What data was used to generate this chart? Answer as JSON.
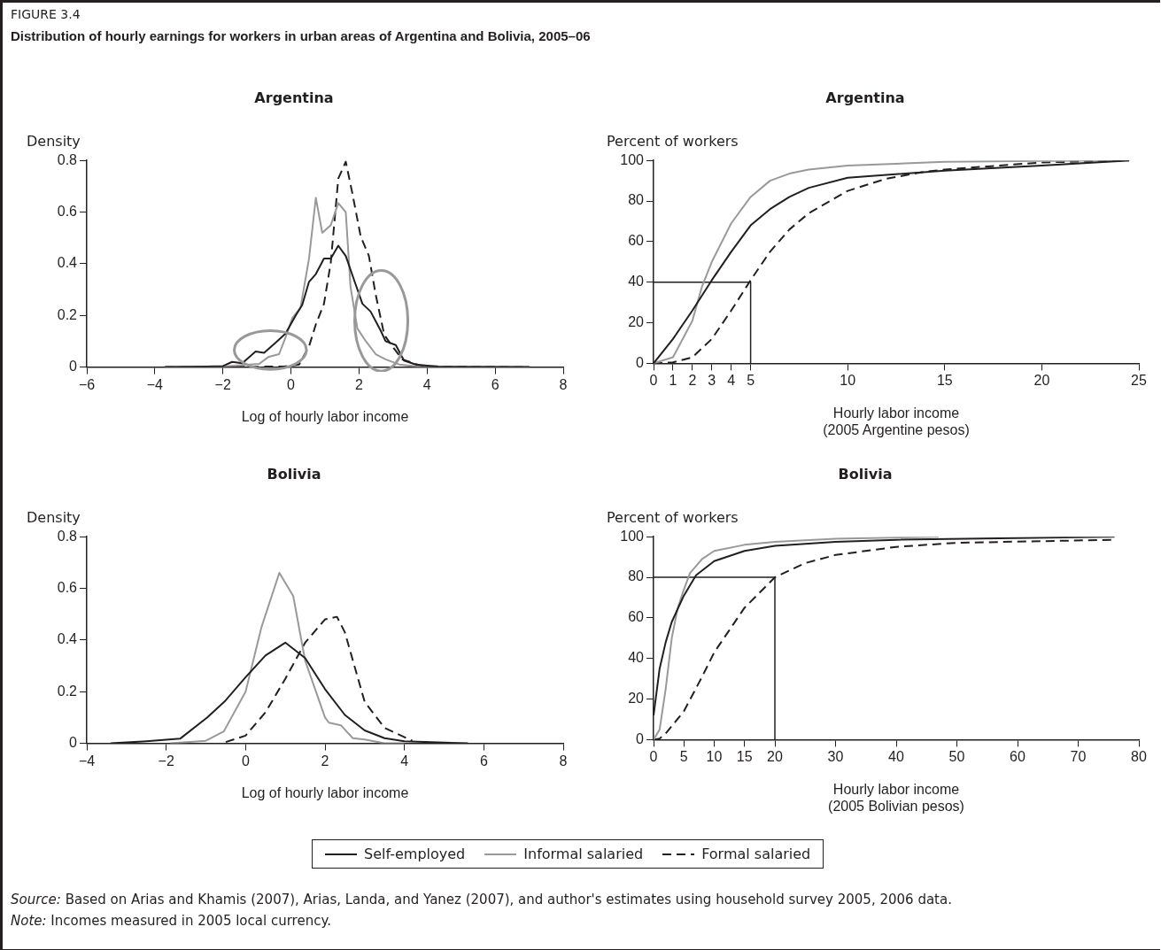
{
  "chart_data": [
    {
      "type": "line",
      "title": "Argentina",
      "ylabel": "Density",
      "xlabel": "Log of hourly labor income",
      "annotations": [
        "FIGURE 3.4",
        "Distribution of hourly earnings for workers in urban areas of Argentina and Bolivia, 2005–06"
      ],
      "xlim": [
        -6,
        8
      ],
      "xticks": [
        -6,
        -4,
        -2,
        0,
        2,
        4,
        6,
        8
      ],
      "ylim": [
        0,
        0.8
      ],
      "yticks": [
        0,
        0.2,
        0.4,
        0.6,
        0.8
      ],
      "grid": false,
      "marker": "none",
      "series": [
        {
          "color": "#231f20",
          "line_style": "solid",
          "x": [
            -3.7,
            -2.5,
            -2,
            -1.73,
            -1.43,
            -1.04,
            -0.79,
            -0.45,
            -0.16,
            0.14,
            0.33,
            0.53,
            0.73,
            0.97,
            1.17,
            1.39,
            1.61,
            1.9,
            2.1,
            2.34,
            2.64,
            2.78,
            3.08,
            3.32,
            3.67,
            4.35,
            7
          ],
          "values": [
            0,
            0.002,
            0.004,
            0.02,
            0.015,
            0.06,
            0.055,
            0.095,
            0.13,
            0.2,
            0.24,
            0.33,
            0.36,
            0.42,
            0.42,
            0.47,
            0.43,
            0.32,
            0.245,
            0.215,
            0.14,
            0.1,
            0.085,
            0.025,
            0.01,
            0.001,
            0
          ]
        },
        {
          "color": "#999999",
          "line_style": "solid",
          "x": [
            -3.7,
            -2,
            -0.94,
            -0.65,
            -0.35,
            -0.16,
            0.04,
            0.28,
            0.53,
            0.73,
            0.92,
            1.17,
            1.39,
            1.61,
            1.75,
            1.95,
            2.2,
            2.49,
            2.78,
            3.18,
            3.86,
            7
          ],
          "values": [
            0,
            0.002,
            0.012,
            0.04,
            0.05,
            0.115,
            0.19,
            0.23,
            0.42,
            0.655,
            0.52,
            0.55,
            0.635,
            0.6,
            0.31,
            0.15,
            0.1,
            0.05,
            0.03,
            0.01,
            0,
            0
          ]
        },
        {
          "color": "#231f20",
          "line_style": "dashed",
          "x": [
            -3.7,
            -0.2,
            0.24,
            0.53,
            0.73,
            0.97,
            1.17,
            1.39,
            1.61,
            1.8,
            2.05,
            2.29,
            2.49,
            2.74,
            2.98,
            3.27,
            3.86,
            7
          ],
          "values": [
            0,
            0.002,
            0.01,
            0.08,
            0.165,
            0.245,
            0.405,
            0.73,
            0.795,
            0.675,
            0.505,
            0.43,
            0.28,
            0.125,
            0.08,
            0.03,
            0.003,
            0
          ]
        }
      ]
    },
    {
      "type": "line",
      "title": "Argentina",
      "ylabel": "Percent of workers",
      "xlabel": "Hourly labor income\n(2005 Argentine pesos)",
      "xlim": [
        0,
        25
      ],
      "xticks": [
        0,
        1,
        2,
        3,
        4,
        5,
        10,
        15,
        20,
        25
      ],
      "ylim": [
        0,
        100
      ],
      "yticks": [
        0,
        20,
        40,
        60,
        80,
        100
      ],
      "grid": false,
      "marker": "none",
      "series": [
        {
          "color": "#231f20",
          "line_style": "solid",
          "x": [
            0,
            1,
            2,
            3,
            4,
            5,
            6,
            7,
            8,
            10,
            15,
            20,
            24.5
          ],
          "values": [
            0,
            12,
            26,
            41,
            55,
            68,
            76,
            82,
            86.5,
            91.5,
            95,
            97.5,
            100
          ]
        },
        {
          "color": "#999999",
          "line_style": "solid",
          "x": [
            0,
            1,
            2,
            2.5,
            3,
            4,
            5,
            6,
            7,
            8,
            10,
            15,
            20,
            24.5
          ],
          "values": [
            0,
            3,
            21,
            38,
            50,
            69,
            82,
            90,
            93.5,
            95.5,
            97.5,
            99.3,
            99.8,
            100
          ]
        },
        {
          "color": "#231f20",
          "line_style": "dashed",
          "x": [
            0,
            1,
            2,
            3,
            4,
            5,
            6,
            7,
            8,
            10,
            12,
            14,
            15,
            20,
            24.5
          ],
          "values": [
            0,
            0.5,
            3,
            12,
            26,
            41,
            55,
            66,
            74,
            85,
            91,
            94.5,
            95.5,
            99,
            100
          ]
        },
        {
          "type": "line",
          "color": "#231f20",
          "line_style": "solid",
          "x": [
            0,
            5,
            5
          ],
          "values": [
            40,
            40,
            0
          ]
        }
      ]
    },
    {
      "type": "line",
      "title": "Bolivia",
      "ylabel": "Density",
      "xlabel": "Log of hourly labor income",
      "xlim": [
        -4,
        8
      ],
      "xticks": [
        -4,
        -2,
        0,
        2,
        4,
        6,
        8
      ],
      "ylim": [
        0,
        0.8
      ],
      "yticks": [
        0,
        0.2,
        0.4,
        0.6,
        0.8
      ],
      "grid": false,
      "marker": "none",
      "series": [
        {
          "color": "#231f20",
          "line_style": "solid",
          "x": [
            -3.4,
            -2.5,
            -1.65,
            -0.97,
            -0.51,
            0,
            0.5,
            1,
            1.5,
            2,
            2.5,
            3,
            3.5,
            4,
            5.6
          ],
          "values": [
            0,
            0.008,
            0.018,
            0.1,
            0.165,
            0.256,
            0.34,
            0.39,
            0.33,
            0.21,
            0.11,
            0.05,
            0.02,
            0.008,
            0
          ]
        },
        {
          "color": "#999999",
          "line_style": "solid",
          "x": [
            -1.9,
            -1,
            -0.55,
            0,
            0.4,
            0.85,
            1.2,
            1.5,
            2,
            2.1,
            2.4,
            2.7,
            3,
            3.5,
            4
          ],
          "values": [
            0,
            0.01,
            0.046,
            0.2,
            0.45,
            0.66,
            0.57,
            0.32,
            0.1,
            0.08,
            0.07,
            0.02,
            0.015,
            0,
            0
          ]
        },
        {
          "color": "#231f20",
          "line_style": "dashed",
          "x": [
            -0.5,
            0,
            0.5,
            1,
            1.5,
            2,
            2.3,
            2.5,
            3,
            3.5,
            4.2
          ],
          "values": [
            0.005,
            0.03,
            0.12,
            0.25,
            0.39,
            0.48,
            0.49,
            0.43,
            0.16,
            0.06,
            0.01
          ]
        }
      ]
    },
    {
      "type": "line",
      "title": "Bolivia",
      "ylabel": "Percent of workers",
      "xlabel": "Hourly labor income\n(2005 Bolivian pesos)",
      "xlim": [
        0,
        80
      ],
      "xticks": [
        0,
        5,
        10,
        15,
        20,
        30,
        40,
        50,
        60,
        70,
        80
      ],
      "ylim": [
        0,
        100
      ],
      "yticks": [
        0,
        20,
        40,
        60,
        80,
        100
      ],
      "grid": false,
      "legend": "bottom",
      "marker": "none",
      "annotations": [
        "Source: Based on Arias and Khamis (2007), Arias, Landa, and Yanez (2007), and author's estimates using household survey 2005, 2006 data.",
        "Note: Incomes measured in 2005 local currency."
      ],
      "series": [
        {
          "name": "Self-employed",
          "color": "#231f20",
          "line_style": "solid",
          "x": [
            0,
            1,
            2,
            3,
            5,
            7,
            10,
            15,
            20,
            30,
            40,
            76
          ],
          "values": [
            12,
            35,
            48,
            58,
            71,
            81,
            88,
            93,
            95.5,
            97.5,
            98.5,
            100
          ]
        },
        {
          "name": "Informal salaried",
          "color": "#999999",
          "line_style": "solid",
          "x": [
            0,
            1,
            2,
            3,
            4,
            5,
            6,
            8,
            10,
            15,
            20,
            30,
            47
          ],
          "values": [
            0,
            5,
            25,
            50,
            65,
            74,
            82,
            89,
            93,
            96,
            97.5,
            99,
            100
          ]
        },
        {
          "name": "Formal salaried",
          "color": "#231f20",
          "line_style": "dashed",
          "x": [
            0,
            1,
            2,
            5,
            8,
            10,
            15,
            20,
            25,
            30,
            40,
            50,
            76
          ],
          "values": [
            0,
            0.5,
            3,
            14,
            31,
            43,
            65,
            80,
            87,
            91,
            95,
            97,
            98.5
          ]
        },
        {
          "type": "line",
          "color": "#231f20",
          "line_style": "solid",
          "x": [
            0,
            20,
            20
          ],
          "values": [
            80,
            80,
            0
          ]
        }
      ]
    }
  ]
}
